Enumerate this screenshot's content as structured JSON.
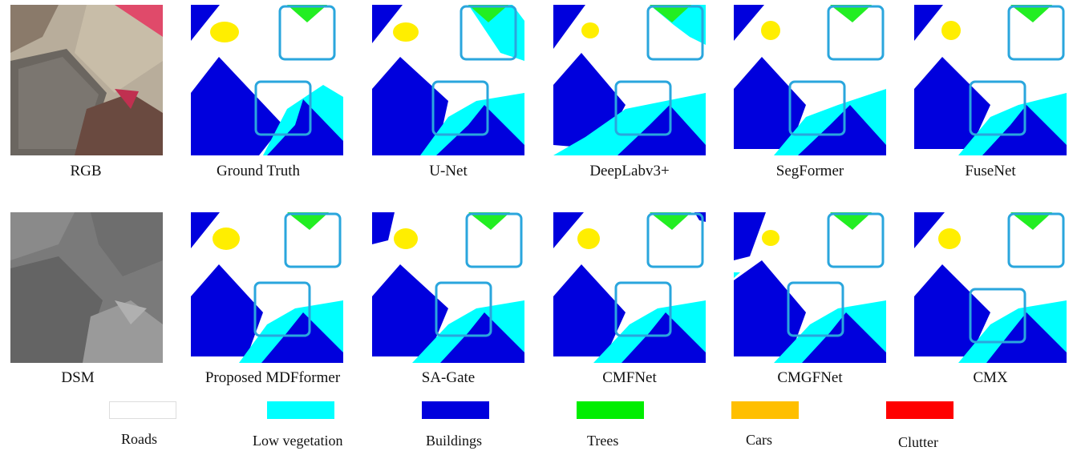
{
  "panels": [
    {
      "id": "rgb",
      "caption": "RGB"
    },
    {
      "id": "gt",
      "caption": "Ground Truth"
    },
    {
      "id": "unet",
      "caption": "U-Net"
    },
    {
      "id": "deeplab",
      "caption": "DeepLabv3+"
    },
    {
      "id": "segformer",
      "caption": "SegFormer"
    },
    {
      "id": "fusenet",
      "caption": "FuseNet"
    },
    {
      "id": "dsm",
      "caption": "DSM"
    },
    {
      "id": "mdfformer",
      "caption": "Proposed MDFformer"
    },
    {
      "id": "sagate",
      "caption": "SA-Gate"
    },
    {
      "id": "cmfnet",
      "caption": "CMFNet"
    },
    {
      "id": "cmgfnet",
      "caption": "CMGFNet"
    },
    {
      "id": "cmx",
      "caption": "CMX"
    }
  ],
  "legend": [
    {
      "label": "Roads",
      "color": "#ffffff"
    },
    {
      "label": "Low vegetation",
      "color": "#00ffff"
    },
    {
      "label": "Buildings",
      "color": "#0000ff"
    },
    {
      "label": "Trees",
      "color": "#00ff00"
    },
    {
      "label": "Cars",
      "color": "#ffbf00"
    },
    {
      "label": "Clutter",
      "color": "#ff0000"
    }
  ],
  "colors": {
    "roads": "#ffffff",
    "low_vegetation": "#00ffff",
    "buildings": "#0000dd",
    "trees": "#22ee22",
    "cars": "#ffee00",
    "highlight_box": "#2aa6dd"
  }
}
